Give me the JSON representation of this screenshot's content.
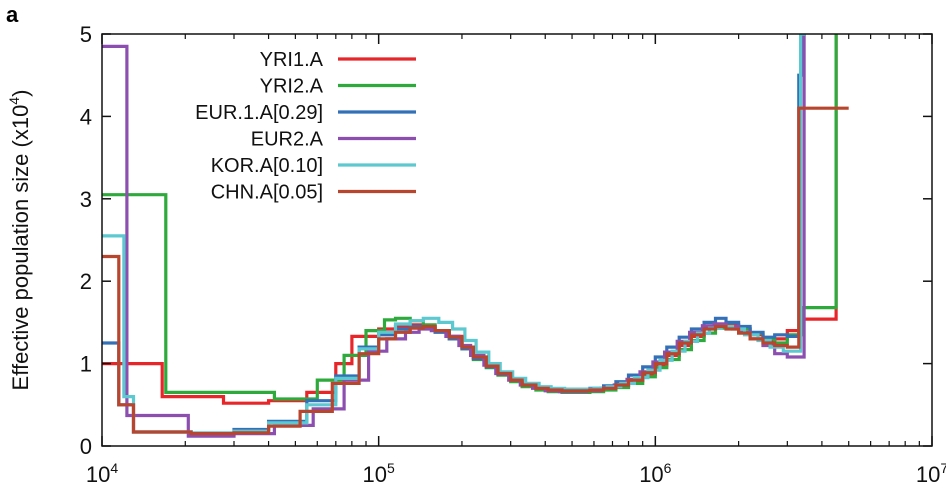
{
  "panel_label": "a",
  "chart_data": {
    "type": "line",
    "step": true,
    "xscale": "log",
    "xlim": [
      10000,
      10000000
    ],
    "ylim": [
      0,
      5
    ],
    "xlabel": "",
    "ylabel": "Effective population size (x10⁴)",
    "ylabel_base": "Effective population size (x10",
    "ylabel_exp": "4",
    "ylabel_end": ")",
    "xticks": [
      {
        "value": 10000,
        "base": "10",
        "exp": "4"
      },
      {
        "value": 100000,
        "base": "10",
        "exp": "5"
      },
      {
        "value": 1000000,
        "base": "10",
        "exp": "6"
      },
      {
        "value": 10000000,
        "base": "10",
        "exp": "7"
      }
    ],
    "yticks": [
      {
        "value": 0,
        "label": "0"
      },
      {
        "value": 1,
        "label": "1"
      },
      {
        "value": 2,
        "label": "2"
      },
      {
        "value": 3,
        "label": "3"
      },
      {
        "value": 4,
        "label": "4"
      },
      {
        "value": 5,
        "label": "5"
      }
    ],
    "grid": false,
    "legend": "top-left",
    "series": [
      {
        "name": "YRI1.A",
        "color": "#e8262a",
        "x": [
          10000,
          16500,
          27500,
          40000,
          55000,
          70000,
          80000,
          100000,
          115000,
          130000,
          145000,
          160000,
          180000,
          200000,
          220000,
          245000,
          270000,
          300000,
          330000,
          370000,
          410000,
          460000,
          510000,
          580000,
          650000,
          720000,
          800000,
          900000,
          1000000,
          1100000,
          1220000,
          1350000,
          1500000,
          1650000,
          1800000,
          2000000,
          2200000,
          2450000,
          2700000,
          3000000,
          3400000,
          4500000
        ],
        "y": [
          1.0,
          0.6,
          0.52,
          0.55,
          0.65,
          1.0,
          1.33,
          1.42,
          1.45,
          1.47,
          1.45,
          1.4,
          1.33,
          1.2,
          1.07,
          0.97,
          0.88,
          0.8,
          0.74,
          0.7,
          0.68,
          0.67,
          0.67,
          0.68,
          0.7,
          0.73,
          0.79,
          0.87,
          0.98,
          1.1,
          1.22,
          1.33,
          1.43,
          1.48,
          1.47,
          1.42,
          1.35,
          1.28,
          1.3,
          1.4,
          1.54,
          5.0
        ]
      },
      {
        "name": "YRI2.A",
        "color": "#2eaa3c",
        "x": [
          10000,
          17000,
          42000,
          60000,
          75000,
          90000,
          105000,
          115000,
          130000,
          145000,
          160000,
          180000,
          200000,
          220000,
          245000,
          270000,
          300000,
          330000,
          370000,
          410000,
          460000,
          510000,
          580000,
          650000,
          720000,
          800000,
          900000,
          1000000,
          1100000,
          1220000,
          1350000,
          1500000,
          1650000,
          1800000,
          2000000,
          2200000,
          2450000,
          2700000,
          3000000,
          3400000,
          4500000
        ],
        "y": [
          3.05,
          0.65,
          0.57,
          0.8,
          1.1,
          1.4,
          1.53,
          1.55,
          1.52,
          1.47,
          1.4,
          1.3,
          1.18,
          1.05,
          0.95,
          0.86,
          0.78,
          0.72,
          0.68,
          0.66,
          0.65,
          0.65,
          0.66,
          0.68,
          0.71,
          0.76,
          0.84,
          0.95,
          1.05,
          1.17,
          1.28,
          1.37,
          1.43,
          1.45,
          1.42,
          1.37,
          1.3,
          1.25,
          1.35,
          1.68,
          5.0
        ]
      },
      {
        "name": "EUR.1.A[0.29]",
        "color": "#3470b8",
        "x": [
          10000,
          11500,
          13000,
          21000,
          30000,
          40000,
          55000,
          70000,
          85000,
          100000,
          115000,
          130000,
          145000,
          160000,
          180000,
          200000,
          220000,
          245000,
          270000,
          300000,
          330000,
          370000,
          410000,
          460000,
          510000,
          580000,
          650000,
          720000,
          800000,
          900000,
          1000000,
          1100000,
          1220000,
          1350000,
          1500000,
          1650000,
          1800000,
          2000000,
          2200000,
          2450000,
          2700000,
          3000000,
          3300000,
          3400000,
          3500000
        ],
        "y": [
          1.25,
          0.5,
          0.17,
          0.15,
          0.2,
          0.3,
          0.55,
          0.85,
          1.2,
          1.35,
          1.42,
          1.45,
          1.43,
          1.38,
          1.3,
          1.18,
          1.06,
          0.96,
          0.87,
          0.8,
          0.75,
          0.71,
          0.69,
          0.68,
          0.68,
          0.7,
          0.73,
          0.78,
          0.86,
          0.96,
          1.08,
          1.2,
          1.32,
          1.42,
          1.5,
          1.55,
          1.5,
          1.45,
          1.38,
          1.32,
          1.35,
          1.33,
          4.5,
          5.0,
          5.0
        ]
      },
      {
        "name": "EUR2.A",
        "color": "#8c4fb0",
        "x": [
          10000,
          12300,
          20500,
          30000,
          42000,
          58000,
          75000,
          92000,
          107000,
          125000,
          140000,
          155000,
          175000,
          195000,
          215000,
          240000,
          265000,
          295000,
          325000,
          360000,
          400000,
          450000,
          500000,
          565000,
          635000,
          710000,
          790000,
          880000,
          980000,
          1080000,
          1200000,
          1330000,
          1480000,
          1630000,
          1800000,
          2000000,
          2200000,
          2450000,
          2700000,
          3000000,
          3450000
        ],
        "y": [
          4.85,
          0.37,
          0.12,
          0.15,
          0.25,
          0.45,
          0.8,
          1.15,
          1.3,
          1.38,
          1.42,
          1.4,
          1.33,
          1.22,
          1.1,
          0.98,
          0.88,
          0.8,
          0.74,
          0.7,
          0.67,
          0.66,
          0.66,
          0.67,
          0.7,
          0.74,
          0.81,
          0.9,
          1.02,
          1.14,
          1.27,
          1.38,
          1.46,
          1.48,
          1.45,
          1.38,
          1.3,
          1.22,
          1.12,
          1.08,
          5.0
        ]
      },
      {
        "name": "KOR.A[0.10]",
        "color": "#5cc8d0",
        "x": [
          10000,
          12000,
          13000,
          21000,
          30000,
          40000,
          55000,
          70000,
          85000,
          100000,
          115000,
          130000,
          145000,
          165000,
          185000,
          205000,
          225000,
          250000,
          275000,
          305000,
          340000,
          380000,
          420000,
          470000,
          530000,
          600000,
          670000,
          750000,
          840000,
          940000,
          1040000,
          1150000,
          1280000,
          1420000,
          1570000,
          1730000,
          1900000,
          2100000,
          2350000,
          2600000,
          2900000,
          3350000,
          3500000
        ],
        "y": [
          2.55,
          0.6,
          0.17,
          0.16,
          0.18,
          0.28,
          0.5,
          0.82,
          1.18,
          1.38,
          1.48,
          1.52,
          1.55,
          1.5,
          1.42,
          1.28,
          1.14,
          1.0,
          0.9,
          0.82,
          0.76,
          0.72,
          0.7,
          0.69,
          0.69,
          0.7,
          0.72,
          0.76,
          0.83,
          0.92,
          1.04,
          1.15,
          1.27,
          1.37,
          1.43,
          1.45,
          1.42,
          1.35,
          1.28,
          1.2,
          1.15,
          5.0,
          5.0
        ]
      },
      {
        "name": "CHN.A[0.05]",
        "color": "#b8462e",
        "x": [
          10000,
          11500,
          13000,
          21000,
          30000,
          40000,
          52000,
          68000,
          85000,
          100000,
          115000,
          130000,
          145000,
          160000,
          180000,
          200000,
          220000,
          245000,
          270000,
          300000,
          330000,
          370000,
          410000,
          460000,
          510000,
          580000,
          650000,
          720000,
          800000,
          900000,
          1000000,
          1100000,
          1220000,
          1350000,
          1500000,
          1650000,
          1800000,
          2000000,
          2200000,
          2450000,
          2700000,
          3000000,
          3300000,
          5000000
        ],
        "y": [
          2.3,
          0.5,
          0.17,
          0.15,
          0.16,
          0.24,
          0.42,
          0.76,
          1.12,
          1.3,
          1.38,
          1.43,
          1.45,
          1.4,
          1.32,
          1.2,
          1.08,
          0.97,
          0.88,
          0.8,
          0.74,
          0.7,
          0.68,
          0.67,
          0.67,
          0.68,
          0.7,
          0.74,
          0.8,
          0.89,
          1.0,
          1.12,
          1.25,
          1.35,
          1.42,
          1.45,
          1.42,
          1.37,
          1.3,
          1.25,
          1.22,
          1.2,
          4.1,
          4.1
        ]
      }
    ]
  }
}
